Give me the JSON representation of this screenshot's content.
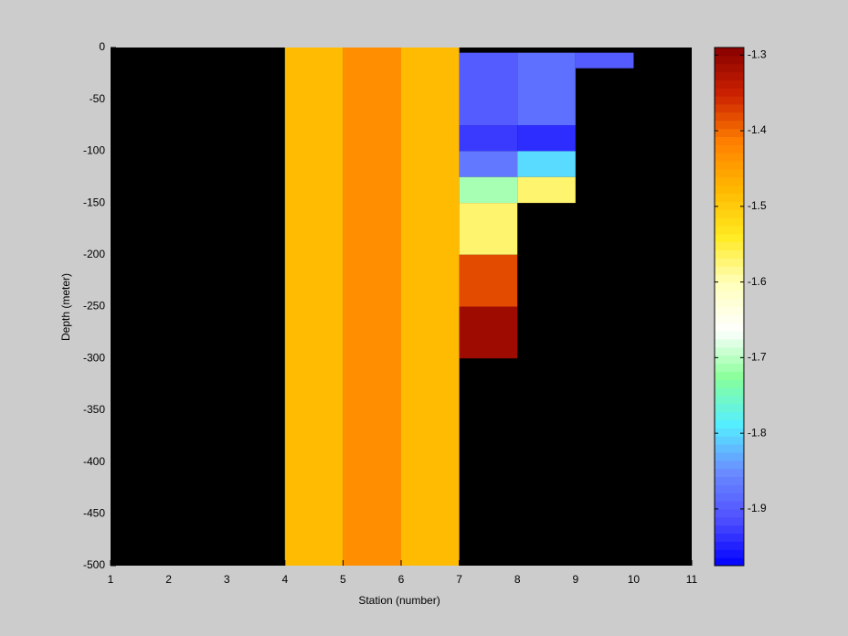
{
  "chart_data": {
    "type": "heatmap",
    "xlabel": "Station (number)",
    "ylabel": "Depth (meter)",
    "xlim": [
      1,
      11
    ],
    "ylim": [
      -500,
      0
    ],
    "xticks": [
      1,
      2,
      3,
      4,
      5,
      6,
      7,
      8,
      9,
      10,
      11
    ],
    "yticks": [
      0,
      -50,
      -100,
      -150,
      -200,
      -250,
      -300,
      -350,
      -400,
      -450,
      -500
    ],
    "background": "#000000",
    "clim": [
      -1.975,
      -1.29
    ],
    "cticks": [
      -1.9,
      -1.8,
      -1.7,
      -1.6,
      -1.5,
      -1.4,
      -1.3
    ],
    "colormap": [
      "#0000ff",
      "#5050ff",
      "#6a8cff",
      "#55eeff",
      "#88ff99",
      "#ffffff",
      "#ffffbb",
      "#ffea20",
      "#ffb800",
      "#ff8000",
      "#cc2200",
      "#880000"
    ],
    "cells": [
      {
        "x": [
          4,
          5
        ],
        "y": [
          -500,
          0
        ],
        "value": -1.48
      },
      {
        "x": [
          5,
          6
        ],
        "y": [
          -500,
          0
        ],
        "value": -1.43
      },
      {
        "x": [
          6,
          7
        ],
        "y": [
          -500,
          0
        ],
        "value": -1.48
      },
      {
        "x": [
          7,
          8
        ],
        "y": [
          -75,
          -5
        ],
        "value": -1.9
      },
      {
        "x": [
          7,
          8
        ],
        "y": [
          -100,
          -75
        ],
        "value": -1.93
      },
      {
        "x": [
          7,
          8
        ],
        "y": [
          -125,
          -100
        ],
        "value": -1.87
      },
      {
        "x": [
          7,
          8
        ],
        "y": [
          -150,
          -125
        ],
        "value": -1.71
      },
      {
        "x": [
          7,
          8
        ],
        "y": [
          -200,
          -150
        ],
        "value": -1.57
      },
      {
        "x": [
          7,
          8
        ],
        "y": [
          -250,
          -200
        ],
        "value": -1.38
      },
      {
        "x": [
          7,
          8
        ],
        "y": [
          -300,
          -250
        ],
        "value": -1.31
      },
      {
        "x": [
          8,
          9
        ],
        "y": [
          -75,
          -5
        ],
        "value": -1.88
      },
      {
        "x": [
          8,
          9
        ],
        "y": [
          -100,
          -75
        ],
        "value": -1.94
      },
      {
        "x": [
          8,
          9
        ],
        "y": [
          -125,
          -100
        ],
        "value": -1.8
      },
      {
        "x": [
          8,
          9
        ],
        "y": [
          -150,
          -125
        ],
        "value": -1.57
      },
      {
        "x": [
          9,
          10
        ],
        "y": [
          -20,
          -5
        ],
        "value": -1.9
      }
    ]
  }
}
